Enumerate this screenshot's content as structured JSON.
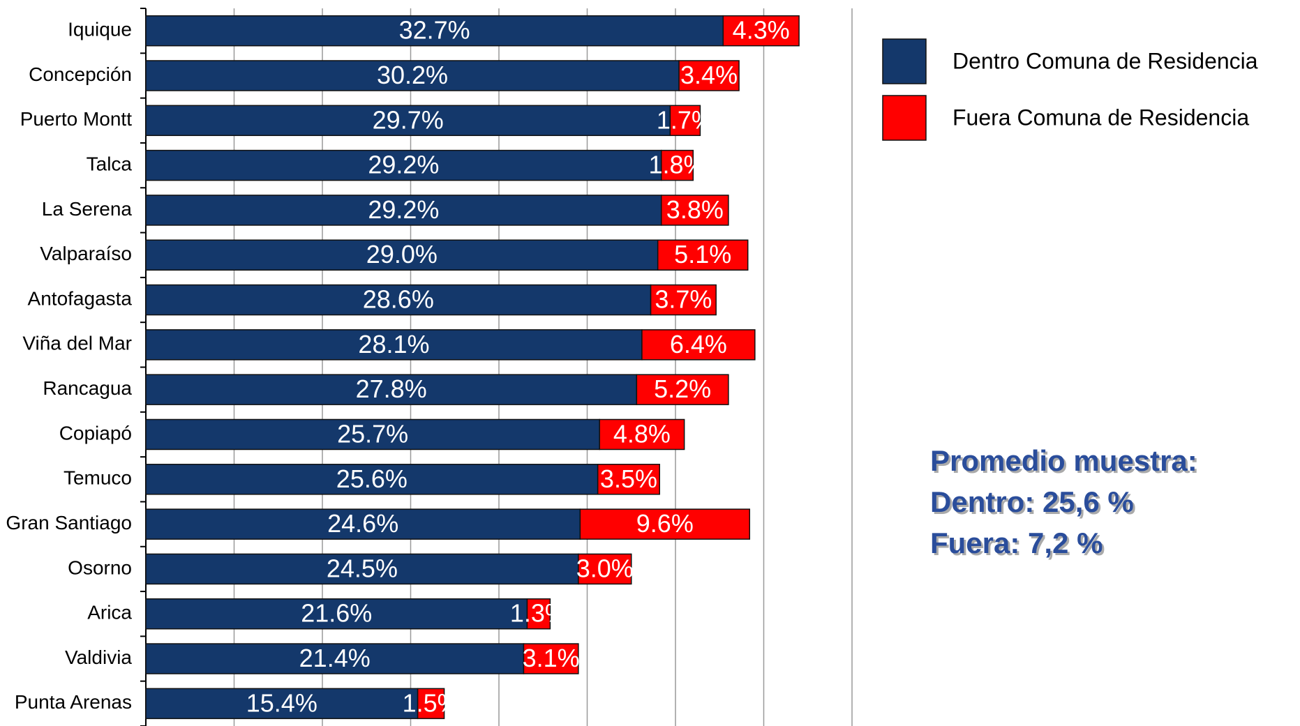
{
  "chart_data": {
    "type": "stacked_bar_horizontal",
    "categories": [
      "Iquique",
      "Concepción",
      "Puerto Montt",
      "Talca",
      "La Serena",
      "Valparaíso",
      "Antofagasta",
      "Viña del Mar",
      "Rancagua",
      "Copiapó",
      "Temuco",
      "Gran Santiago",
      "Osorno",
      "Arica",
      "Valdivia",
      "Punta Arenas"
    ],
    "series": [
      {
        "name": "Dentro Comuna de Residencia",
        "color": "#14386b",
        "values": [
          32.7,
          30.2,
          29.7,
          29.2,
          29.2,
          29.0,
          28.6,
          28.1,
          27.8,
          25.7,
          25.6,
          24.6,
          24.5,
          21.6,
          21.4,
          15.4
        ],
        "value_labels": [
          "32.7%",
          "30.2%",
          "29.7%",
          "29.2%",
          "29.2%",
          "29.0%",
          "28.6%",
          "28.1%",
          "27.8%",
          "25.7%",
          "25.6%",
          "24.6%",
          "24.5%",
          "21.6%",
          "21.4%",
          "15.4%"
        ]
      },
      {
        "name": "Fuera Comuna de Residencia",
        "color": "#ff0000",
        "values": [
          4.3,
          3.4,
          1.7,
          1.8,
          3.8,
          5.1,
          3.7,
          6.4,
          5.2,
          4.8,
          3.5,
          9.6,
          3.0,
          1.3,
          3.1,
          1.5
        ],
        "value_labels": [
          "4.3%",
          "3.4%",
          "1.7%",
          "1.8%",
          "3.8%",
          "5.1%",
          "3.7%",
          "6.4%",
          "5.2%",
          "4.8%",
          "3.5%",
          "9.6%",
          "3.0%",
          "1.3%",
          "3.1%",
          "1.5%"
        ]
      }
    ],
    "xlim": [
      0,
      40
    ],
    "xticks": [
      0,
      5,
      10,
      15,
      20,
      25,
      30,
      35,
      40
    ],
    "grid": true,
    "annotations": [
      "Promedio muestra:",
      "Dentro: 25,6 %",
      "Fuera: 7,2 %"
    ]
  }
}
